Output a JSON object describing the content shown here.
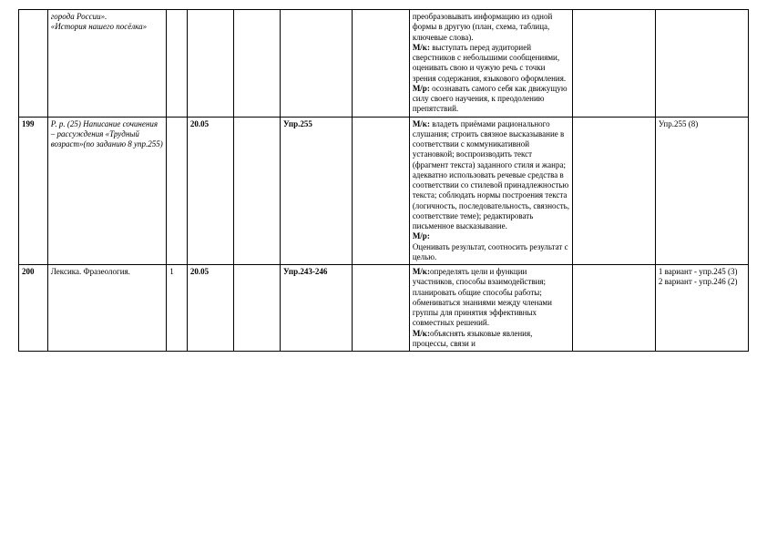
{
  "rows": [
    {
      "num": "",
      "topic_html": "города России».\n«История нашего посёлка»",
      "topic_italic": true,
      "hours": "",
      "date": "",
      "d2": "",
      "ex": "",
      "x1": "",
      "results": "преобразовывать информацию из одной формы в другую (план, схема, таблица, ключевые слова).\nМ/к: выступать перед аудиторией сверстников с небольшими сообщениями, оценивать свою и чужую речь с точки зрения содержания, языкового оформления.\nМ/р: осознавать самого себя как движущую силу своего научения, к преодолению препятствий.",
      "x2": "",
      "hw": ""
    },
    {
      "num": "199",
      "topic_html": "Р. р. (25) Написание сочинения – рассуждения «Трудный возраст»(по заданию 8 упр.255)",
      "topic_italic": true,
      "hours": "",
      "date": "20.05",
      "d2": "",
      "ex": "Упр.255",
      "x1": "",
      "results": "М/к: владеть приёмами рационального слушания; строить связное высказывание в соответствии с коммуникативной установкой; воспроизводить текст (фрагмент текста) заданного стиля и жанра; адекватно использовать речевые средства в соответствии со стилевой принадлежностью текста; соблюдать нормы построения текста (логичность, последовательность, связность, соответствие теме); редактировать письменное высказывание.\nМ/р:\nОценивать результат, соотносить результат с целью.",
      "x2": "",
      "hw": "Упр.255 (8)"
    },
    {
      "num": "200",
      "topic_html": "Лексика. Фразеология.",
      "topic_italic": false,
      "hours": "1",
      "date": "20.05",
      "d2": "",
      "ex": "Упр.243-246",
      "x1": "",
      "results": "М/к:определять цели и функции участников, способы взаимодействия; планировать общие способы работы; обмениваться знаниями между членами группы для принятия эффективных совместных решений.\nМ/к:объяснять языковые явления, процессы, связи и",
      "x2": "",
      "hw": "1 вариант - упр.245 (3)\n2 вариант - упр.246 (2)"
    }
  ]
}
